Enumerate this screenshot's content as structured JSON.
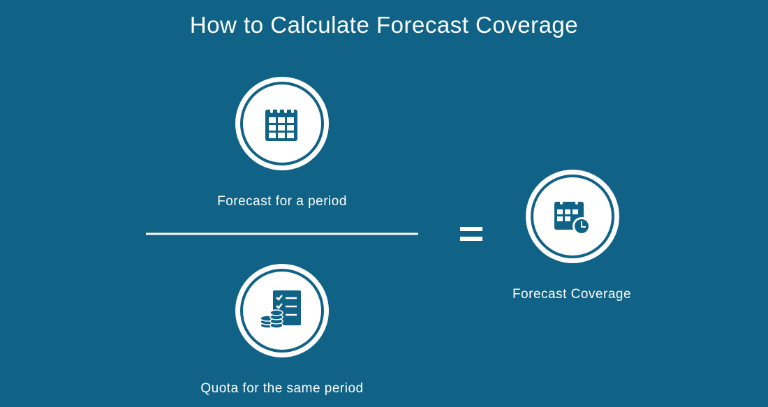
{
  "title": "How to Calculate Forecast Coverage",
  "numerator": {
    "label": "Forecast for a period"
  },
  "denominator": {
    "label": "Quota for the same period"
  },
  "result": {
    "label": "Forecast Coverage"
  }
}
